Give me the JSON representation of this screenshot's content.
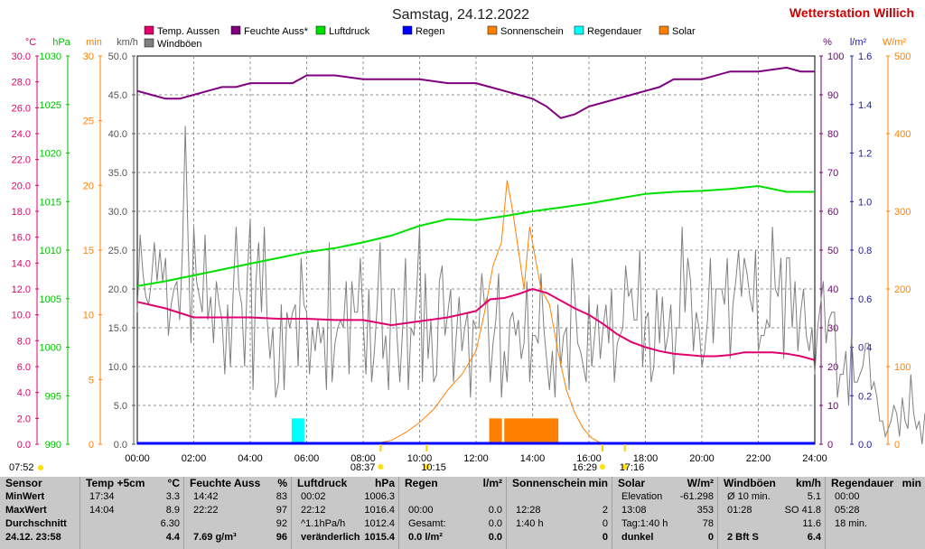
{
  "chart_data": {
    "type": "line",
    "title": "Samstag, 24.12.2022",
    "station": "Wetterstation Willich",
    "x_ticks": [
      "00:00",
      "02:00",
      "04:00",
      "06:00",
      "08:00",
      "10:00",
      "12:00",
      "14:00",
      "16:00",
      "18:00",
      "20:00",
      "22:00",
      "24:00"
    ],
    "axes": [
      {
        "unit": "°C",
        "ticks": [
          "30.0",
          "28.0",
          "26.0",
          "24.0",
          "22.0",
          "20.0",
          "18.0",
          "16.0",
          "14.0",
          "12.0",
          "10.0",
          "8.0",
          "6.0",
          "4.0",
          "2.0",
          "0.0"
        ],
        "color": "#e0006e"
      },
      {
        "unit": "hPa",
        "ticks": [
          "1030",
          "1025",
          "1020",
          "1015",
          "1010",
          "1005",
          "1000",
          "995",
          "990"
        ],
        "color": "#00c000"
      },
      {
        "unit": "min",
        "ticks": [
          "30",
          "25",
          "20",
          "15",
          "10",
          "5",
          "0"
        ],
        "color": "#ff8000"
      },
      {
        "unit": "km/h",
        "ticks": [
          "50.0",
          "45.0",
          "40.0",
          "35.0",
          "30.0",
          "25.0",
          "20.0",
          "15.0",
          "10.0",
          "5.0",
          "0.0"
        ],
        "color": "#555555"
      },
      {
        "unit": "%",
        "ticks": [
          "100",
          "90",
          "80",
          "70",
          "60",
          "50",
          "40",
          "30",
          "20",
          "10",
          "0"
        ],
        "color": "#700070"
      },
      {
        "unit": "l/m²",
        "ticks": [
          "1.6",
          "1.4",
          "1.2",
          "1.0",
          "0.8",
          "0.6",
          "0.4",
          "0.2",
          "0.0"
        ],
        "color": "#2020a0"
      },
      {
        "unit": "W/m²",
        "ticks": [
          "500",
          "400",
          "300",
          "200",
          "100",
          "0"
        ],
        "color": "#ff8000"
      }
    ],
    "legend": [
      {
        "label": "Temp. Aussen",
        "color": "#e0006e"
      },
      {
        "label": "Feuchte Auss*",
        "color": "#800080"
      },
      {
        "label": "Luftdruck",
        "color": "#00e000"
      },
      {
        "label": "Regen",
        "color": "#0000ff"
      },
      {
        "label": "Sonnenschein",
        "color": "#ff8000"
      },
      {
        "label": "Regendauer",
        "color": "#00ffff"
      },
      {
        "label": "Solar",
        "color": "#ff8000"
      },
      {
        "label": "Windböen",
        "color": "#808080"
      }
    ],
    "series": {
      "temp": {
        "x": [
          0,
          1,
          2,
          3,
          4,
          5,
          6,
          7,
          8,
          9,
          10,
          11,
          12,
          12.5,
          13,
          13.5,
          14,
          14.5,
          15,
          15.5,
          16,
          16.5,
          17,
          17.5,
          18,
          18.5,
          19,
          19.5,
          20,
          20.5,
          21,
          21.5,
          22,
          22.5,
          23,
          23.5,
          24
        ],
        "y": [
          11.0,
          10.5,
          9.8,
          9.8,
          9.8,
          9.7,
          9.7,
          9.6,
          9.6,
          9.2,
          9.5,
          9.8,
          10.3,
          11.2,
          11.3,
          11.6,
          12.0,
          11.7,
          11.1,
          10.5,
          10.0,
          9.3,
          8.5,
          7.9,
          7.5,
          7.2,
          7.0,
          6.9,
          6.8,
          6.8,
          6.9,
          7.1,
          7.1,
          7.1,
          7.0,
          6.8,
          6.5
        ]
      },
      "humidity": {
        "x": [
          0,
          0.5,
          1,
          1.5,
          2,
          2.5,
          3,
          3.5,
          4,
          4.5,
          5,
          5.5,
          6,
          7,
          8,
          9,
          10,
          11,
          12,
          12.5,
          13,
          13.5,
          14,
          14.5,
          15,
          15.5,
          16,
          16.5,
          17,
          17.5,
          18,
          18.5,
          19,
          20,
          21,
          22,
          23,
          23.5,
          24
        ],
        "y": [
          91,
          90,
          89,
          89,
          90,
          91,
          92,
          92,
          93,
          93,
          93,
          93,
          95,
          95,
          94,
          94,
          94,
          93,
          93,
          92,
          91,
          90,
          89,
          87,
          84,
          85,
          87,
          88,
          89,
          90,
          91,
          92,
          94,
          94,
          96,
          96,
          97,
          96,
          96
        ]
      },
      "pressure": {
        "x": [
          0,
          1,
          2,
          3,
          4,
          5,
          6,
          7,
          8,
          9,
          10,
          11,
          12,
          13,
          14,
          15,
          16,
          17,
          18,
          19,
          20,
          21,
          22,
          23,
          24
        ],
        "y": [
          1006.3,
          1006.8,
          1007.4,
          1008.0,
          1008.6,
          1009.2,
          1009.8,
          1010.2,
          1010.8,
          1011.5,
          1012.5,
          1013.2,
          1013.1,
          1013.5,
          1014.0,
          1014.4,
          1014.8,
          1015.3,
          1015.8,
          1016.0,
          1016.1,
          1016.3,
          1016.6,
          1016.0,
          1016.0
        ]
      },
      "solar": {
        "x": [
          8.3,
          9,
          9.5,
          10,
          10.5,
          11,
          11.5,
          12,
          12.3,
          12.6,
          12.9,
          13.1,
          13.3,
          13.5,
          13.7,
          13.9,
          14.1,
          14.3,
          14.6,
          14.9,
          15.2,
          15.5,
          15.8,
          16.1,
          16.4,
          16.5
        ],
        "y": [
          0,
          5,
          15,
          28,
          45,
          70,
          90,
          120,
          170,
          230,
          260,
          340,
          300,
          250,
          200,
          280,
          240,
          200,
          180,
          120,
          70,
          40,
          20,
          8,
          2,
          0
        ]
      },
      "gust_x_step_h": 0.1,
      "gust": [
        17,
        27,
        22,
        19,
        18,
        21,
        26,
        21,
        25,
        21,
        24,
        14,
        18,
        20,
        21,
        16,
        25,
        41,
        26,
        13,
        28,
        21,
        19,
        17,
        27,
        16,
        19,
        13,
        21,
        18,
        16,
        9,
        18,
        10,
        20,
        28,
        20,
        18,
        10,
        22,
        29,
        7,
        21,
        26,
        17,
        28,
        16,
        11,
        15,
        6,
        8,
        18,
        7,
        17,
        15,
        17,
        18,
        10,
        24,
        18,
        17,
        9,
        15,
        12,
        16,
        13,
        15,
        7,
        26,
        8,
        13,
        15,
        16,
        15,
        21,
        9,
        21,
        17,
        17,
        24,
        16,
        9,
        20,
        8,
        12,
        18,
        26,
        11,
        14,
        7,
        20,
        20,
        14,
        8,
        15,
        24,
        7,
        15,
        14,
        20,
        28,
        8,
        22,
        11,
        16,
        8,
        9,
        21,
        23,
        14,
        17,
        20,
        8,
        14,
        19,
        12,
        15,
        17,
        6,
        16,
        15,
        15,
        22,
        18,
        19,
        8,
        13,
        16,
        22,
        6,
        12,
        8,
        16,
        17,
        14,
        16,
        11,
        13,
        21,
        8,
        14,
        14,
        13,
        22,
        15,
        11,
        7,
        12,
        6,
        18,
        10,
        14,
        15,
        7,
        24,
        19,
        13,
        12,
        10,
        8,
        19,
        10,
        14,
        18,
        11,
        15,
        18,
        13,
        20,
        8,
        13,
        14,
        15,
        23,
        19,
        20,
        16,
        16,
        25,
        10,
        16,
        17,
        8,
        10,
        20,
        13,
        19,
        12,
        14,
        18,
        9,
        15,
        15,
        28,
        17,
        24,
        21,
        12,
        17,
        15,
        10,
        12,
        16,
        24,
        13,
        20,
        20,
        20,
        18,
        24,
        11,
        18,
        21,
        25,
        19,
        24,
        22,
        19,
        17,
        25,
        12,
        14,
        14,
        16,
        15,
        28,
        20,
        19,
        24,
        11,
        24,
        24,
        15,
        21,
        12,
        17,
        20,
        14,
        12,
        15,
        9,
        15,
        18,
        21,
        13,
        16,
        17,
        17,
        6,
        9,
        9,
        12,
        5,
        14,
        8,
        8,
        9,
        10,
        13,
        13,
        7,
        8,
        6,
        3,
        3,
        1,
        2,
        3,
        5,
        4,
        1,
        6,
        3,
        2,
        9,
        4,
        2,
        3,
        0,
        4,
        3,
        6,
        2,
        5,
        3,
        2,
        5,
        3,
        0,
        3,
        3,
        3,
        3,
        5,
        3,
        3,
        6,
        3,
        0,
        3,
        3,
        2,
        3,
        0,
        5,
        2,
        3,
        4,
        5,
        3,
        2,
        5,
        6,
        3,
        3,
        5,
        2,
        2,
        3,
        0,
        2,
        3,
        6,
        4,
        6,
        3,
        0,
        5,
        2,
        3,
        6,
        5,
        3,
        0,
        3,
        3,
        4,
        6,
        3,
        3,
        5,
        4,
        3,
        3,
        3,
        3,
        6,
        5,
        0,
        2,
        3,
        6,
        3,
        5,
        5,
        3,
        4,
        5,
        3,
        2,
        5,
        3,
        3,
        5,
        3,
        3,
        3,
        6,
        2,
        5,
        0,
        3,
        3,
        3,
        5,
        3,
        10,
        6,
        13,
        8,
        10,
        5,
        14,
        8,
        13,
        16,
        13,
        9,
        12,
        10,
        5
      ]
    },
    "sunshine_blocks": [
      {
        "from": "12:28",
        "to": "12:55",
        "minutes": 2
      },
      {
        "from": "13:00",
        "to": "14:55",
        "minutes": 2
      }
    ],
    "rain_duration_blocks": [
      {
        "from": "05:28",
        "to": "05:55",
        "minutes": 2
      }
    ],
    "markers": [
      {
        "label": "07:52",
        "hour": 7.87
      },
      {
        "label": "08:37",
        "hour": 8.62
      },
      {
        "label": "10:15",
        "hour": 10.25
      },
      {
        "label": "16:29",
        "hour": 16.48
      },
      {
        "label": "17:16",
        "hour": 17.27
      }
    ]
  },
  "stats": {
    "sensor": {
      "header": "Sensor",
      "rows": [
        "MinWert",
        "MaxWert",
        "Durchschnitt",
        "24.12. 23:58"
      ]
    },
    "temp": {
      "header": "Temp +5cm",
      "unit": "°C",
      "rows": [
        [
          "17:34",
          "3.3"
        ],
        [
          "14:04",
          "8.9"
        ],
        [
          "",
          "6.30"
        ],
        [
          "",
          "4.4"
        ]
      ]
    },
    "humidity": {
      "header": "Feuchte Auss",
      "unit": "%",
      "rows": [
        [
          "14:42",
          "83"
        ],
        [
          "22:22",
          "97"
        ],
        [
          "",
          "92"
        ],
        [
          "7.69 g/m³",
          "96"
        ]
      ]
    },
    "pressure": {
      "header": "Luftdruck",
      "unit": "hPa",
      "rows": [
        [
          "00:02",
          "1006.3"
        ],
        [
          "22:12",
          "1016.4"
        ],
        [
          "^1.1hPa/h",
          "1012.4"
        ],
        [
          "veränderlich",
          "1015.4"
        ]
      ]
    },
    "rain": {
      "header": "Regen",
      "unit": "l/m²",
      "rows": [
        [
          "",
          ""
        ],
        [
          "00:00",
          "0.0"
        ],
        [
          "Gesamt:",
          "0.0"
        ],
        [
          "0.0 l/m²",
          "0.0"
        ]
      ]
    },
    "sun": {
      "header": "Sonnenschein",
      "unit": "min",
      "rows": [
        [
          "",
          ""
        ],
        [
          "12:28",
          "2"
        ],
        [
          "1:40 h",
          "0"
        ],
        [
          "",
          "0"
        ]
      ]
    },
    "solar": {
      "header": "Solar",
      "unit": "W/m²",
      "rows": [
        [
          "Elevation",
          "-61.298"
        ],
        [
          "13:08",
          "353"
        ],
        [
          "Tag:1:40 h",
          "78"
        ],
        [
          "dunkel",
          "0"
        ]
      ]
    },
    "wind": {
      "header": "Windböen",
      "unit": "km/h",
      "rows": [
        [
          "Ø 10 min.",
          "5.1"
        ],
        [
          "01:28",
          "SO 41.8"
        ],
        [
          "",
          "11.6"
        ],
        [
          "2 Bft S",
          "6.4"
        ]
      ]
    },
    "raindur": {
      "header": "Regendauer",
      "unit": "min",
      "rows": [
        [
          "00:00",
          ""
        ],
        [
          "05:28",
          ""
        ],
        [
          "18 min.",
          ""
        ],
        [
          "",
          ""
        ]
      ]
    }
  }
}
